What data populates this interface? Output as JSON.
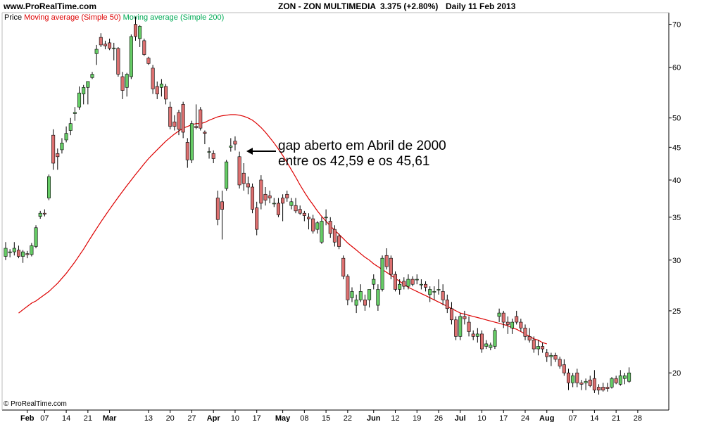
{
  "header": {
    "site": "www.ProRealTime.com",
    "symbol": "ZON - ZON MULTIMEDIA",
    "price": "3.375 (+2.80%)",
    "period": "Daily  11 Feb 2013"
  },
  "legend": {
    "price": "Price",
    "ma50": "Moving average (Simple 50)",
    "ma200": "Moving average (Simple 200)"
  },
  "footer": "© ProRealTime.com",
  "annotation": {
    "line1": "gap aberto em Abril de 2000",
    "line2": "entre os 42,59 e os 45,61"
  },
  "colors": {
    "up": "#66cc66",
    "down": "#dd7070",
    "ma50": "#dd0000",
    "ma200": "#00aa55"
  },
  "chart_data": {
    "type": "candlestick",
    "y_scale": "log",
    "ylim": [
      17.5,
      73
    ],
    "y_ticks": [
      20,
      25,
      30,
      35,
      40,
      45,
      50,
      60,
      70
    ],
    "x_labels": [
      "Feb",
      "07",
      "14",
      "21",
      "Mar",
      "13",
      "20",
      "27",
      "Apr",
      "10",
      "17",
      "May",
      "08",
      "15",
      "22",
      "Jun",
      "12",
      "19",
      "26",
      "Jul",
      "10",
      "17",
      "24",
      "Aug",
      "07",
      "14",
      "21",
      "28"
    ],
    "label_bar_index": [
      5,
      9,
      14,
      19,
      24,
      33,
      38,
      43,
      48,
      53,
      58,
      64,
      69,
      74,
      79,
      85,
      90,
      95,
      100,
      105,
      110,
      115,
      120,
      125,
      131,
      136,
      141,
      146
    ],
    "candles": [
      {
        "o": 30.4,
        "h": 32.0,
        "l": 30.0,
        "c": 31.3
      },
      {
        "o": 30.8,
        "h": 31.2,
        "l": 30.3,
        "c": 30.9
      },
      {
        "o": 30.9,
        "h": 32.0,
        "l": 30.5,
        "c": 31.3
      },
      {
        "o": 31.1,
        "h": 31.6,
        "l": 30.2,
        "c": 30.4
      },
      {
        "o": 30.4,
        "h": 31.1,
        "l": 29.7,
        "c": 30.9
      },
      {
        "o": 30.7,
        "h": 31.0,
        "l": 30.2,
        "c": 30.6
      },
      {
        "o": 30.6,
        "h": 31.9,
        "l": 30.4,
        "c": 31.6
      },
      {
        "o": 31.5,
        "h": 34.0,
        "l": 31.3,
        "c": 33.7
      },
      {
        "o": 35.1,
        "h": 35.8,
        "l": 34.8,
        "c": 35.5
      },
      {
        "o": 35.5,
        "h": 36.0,
        "l": 35.1,
        "c": 35.4
      },
      {
        "o": 37.5,
        "h": 40.8,
        "l": 37.2,
        "c": 40.5
      },
      {
        "o": 47.0,
        "h": 48.0,
        "l": 41.5,
        "c": 42.5
      },
      {
        "o": 44.0,
        "h": 44.8,
        "l": 41.5,
        "c": 43.5
      },
      {
        "o": 44.6,
        "h": 46.5,
        "l": 44.0,
        "c": 45.7
      },
      {
        "o": 46.2,
        "h": 48.5,
        "l": 45.8,
        "c": 47.3
      },
      {
        "o": 47.8,
        "h": 50.0,
        "l": 47.0,
        "c": 49.0
      },
      {
        "o": 50.8,
        "h": 52.0,
        "l": 49.5,
        "c": 51.0
      },
      {
        "o": 52.0,
        "h": 56.0,
        "l": 51.5,
        "c": 54.7
      },
      {
        "o": 54.5,
        "h": 56.3,
        "l": 52.5,
        "c": 55.8
      },
      {
        "o": 55.8,
        "h": 57.0,
        "l": 52.5,
        "c": 57.0
      },
      {
        "o": 57.8,
        "h": 59.0,
        "l": 57.5,
        "c": 58.5
      },
      {
        "o": 63.0,
        "h": 65.0,
        "l": 60.5,
        "c": 64.0
      },
      {
        "o": 66.8,
        "h": 67.8,
        "l": 64.5,
        "c": 65.0
      },
      {
        "o": 65.2,
        "h": 66.0,
        "l": 64.0,
        "c": 64.8
      },
      {
        "o": 65.5,
        "h": 66.5,
        "l": 63.8,
        "c": 64.2
      },
      {
        "o": 64.3,
        "h": 65.5,
        "l": 61.5,
        "c": 64.3
      },
      {
        "o": 64.2,
        "h": 64.5,
        "l": 58.0,
        "c": 58.5
      },
      {
        "o": 58.0,
        "h": 59.0,
        "l": 53.5,
        "c": 55.2
      },
      {
        "o": 55.8,
        "h": 58.8,
        "l": 54.0,
        "c": 58.5
      },
      {
        "o": 58.0,
        "h": 67.5,
        "l": 57.5,
        "c": 67.0
      },
      {
        "o": 70.0,
        "h": 72.0,
        "l": 66.0,
        "c": 67.0
      },
      {
        "o": 66.5,
        "h": 69.8,
        "l": 64.5,
        "c": 69.5
      },
      {
        "o": 66.0,
        "h": 66.5,
        "l": 62.5,
        "c": 62.8
      },
      {
        "o": 62.0,
        "h": 62.3,
        "l": 60.5,
        "c": 60.8
      },
      {
        "o": 59.8,
        "h": 60.5,
        "l": 54.5,
        "c": 55.5
      },
      {
        "o": 56.0,
        "h": 57.0,
        "l": 53.5,
        "c": 54.5
      },
      {
        "o": 55.8,
        "h": 57.5,
        "l": 54.0,
        "c": 56.5
      },
      {
        "o": 56.0,
        "h": 56.5,
        "l": 52.5,
        "c": 53.5
      },
      {
        "o": 52.0,
        "h": 53.0,
        "l": 48.0,
        "c": 48.5
      },
      {
        "o": 49.3,
        "h": 50.5,
        "l": 47.8,
        "c": 48.5
      },
      {
        "o": 51.0,
        "h": 51.5,
        "l": 47.0,
        "c": 48.0
      },
      {
        "o": 52.5,
        "h": 53.0,
        "l": 46.5,
        "c": 47.5
      },
      {
        "o": 45.8,
        "h": 46.5,
        "l": 41.8,
        "c": 43.0
      },
      {
        "o": 43.0,
        "h": 49.5,
        "l": 42.5,
        "c": 49.0
      },
      {
        "o": 48.5,
        "h": 52.5,
        "l": 48.0,
        "c": 48.3
      },
      {
        "o": 51.5,
        "h": 52.0,
        "l": 47.8,
        "c": 48.2
      },
      {
        "o": 47.5,
        "h": 47.8,
        "l": 45.5,
        "c": 47.3
      },
      {
        "o": 44.3,
        "h": 45.0,
        "l": 43.2,
        "c": 44.3
      },
      {
        "o": 44.0,
        "h": 44.5,
        "l": 42.5,
        "c": 43.2
      },
      {
        "o": 37.5,
        "h": 38.5,
        "l": 34.0,
        "c": 34.7
      },
      {
        "o": 37.0,
        "h": 38.5,
        "l": 32.3,
        "c": 36.0
      },
      {
        "o": 38.8,
        "h": 43.0,
        "l": 38.5,
        "c": 42.7
      },
      {
        "o": 45.0,
        "h": 46.5,
        "l": 44.3,
        "c": 45.2
      },
      {
        "o": 46.0,
        "h": 46.8,
        "l": 44.5,
        "c": 45.5
      },
      {
        "o": 43.5,
        "h": 44.3,
        "l": 38.8,
        "c": 39.3
      },
      {
        "o": 41.0,
        "h": 42.5,
        "l": 38.5,
        "c": 39.5
      },
      {
        "o": 39.5,
        "h": 40.5,
        "l": 38.0,
        "c": 39.0
      },
      {
        "o": 39.0,
        "h": 39.5,
        "l": 35.5,
        "c": 36.0
      },
      {
        "o": 36.2,
        "h": 37.0,
        "l": 32.8,
        "c": 33.5
      },
      {
        "o": 40.0,
        "h": 40.7,
        "l": 36.0,
        "c": 36.8
      },
      {
        "o": 38.0,
        "h": 39.0,
        "l": 36.5,
        "c": 37.2
      },
      {
        "o": 37.8,
        "h": 38.5,
        "l": 36.8,
        "c": 37.5
      },
      {
        "o": 36.8,
        "h": 37.5,
        "l": 36.3,
        "c": 36.8
      },
      {
        "o": 36.8,
        "h": 37.5,
        "l": 35.0,
        "c": 35.3
      },
      {
        "o": 37.5,
        "h": 38.0,
        "l": 34.5,
        "c": 36.8
      },
      {
        "o": 38.0,
        "h": 38.5,
        "l": 37.0,
        "c": 37.5
      },
      {
        "o": 36.5,
        "h": 37.5,
        "l": 36.0,
        "c": 37.0
      },
      {
        "o": 36.5,
        "h": 37.5,
        "l": 35.5,
        "c": 35.8
      },
      {
        "o": 36.0,
        "h": 36.5,
        "l": 35.3,
        "c": 35.5
      },
      {
        "o": 35.5,
        "h": 35.8,
        "l": 34.5,
        "c": 35.2
      },
      {
        "o": 35.0,
        "h": 35.5,
        "l": 33.5,
        "c": 34.8
      },
      {
        "o": 34.8,
        "h": 35.3,
        "l": 33.0,
        "c": 33.3
      },
      {
        "o": 33.5,
        "h": 34.5,
        "l": 33.0,
        "c": 34.3
      },
      {
        "o": 32.0,
        "h": 35.0,
        "l": 31.8,
        "c": 34.5
      },
      {
        "o": 35.0,
        "h": 36.0,
        "l": 34.0,
        "c": 35.0
      },
      {
        "o": 34.5,
        "h": 35.0,
        "l": 32.5,
        "c": 33.0
      },
      {
        "o": 33.5,
        "h": 34.0,
        "l": 31.5,
        "c": 32.0
      },
      {
        "o": 32.7,
        "h": 33.0,
        "l": 31.2,
        "c": 31.5
      },
      {
        "o": 30.2,
        "h": 30.5,
        "l": 28.0,
        "c": 28.3
      },
      {
        "o": 28.3,
        "h": 28.5,
        "l": 25.5,
        "c": 26.0
      },
      {
        "o": 26.2,
        "h": 27.2,
        "l": 25.8,
        "c": 26.8
      },
      {
        "o": 25.5,
        "h": 26.5,
        "l": 24.8,
        "c": 26.0
      },
      {
        "o": 26.0,
        "h": 27.5,
        "l": 25.8,
        "c": 26.8
      },
      {
        "o": 26.0,
        "h": 26.5,
        "l": 25.0,
        "c": 25.5
      },
      {
        "o": 26.0,
        "h": 27.0,
        "l": 25.3,
        "c": 27.0
      },
      {
        "o": 27.5,
        "h": 28.5,
        "l": 27.0,
        "c": 28.0
      },
      {
        "o": 25.5,
        "h": 27.5,
        "l": 25.0,
        "c": 27.0
      },
      {
        "o": 27.0,
        "h": 30.5,
        "l": 26.8,
        "c": 30.2
      },
      {
        "o": 30.5,
        "h": 31.3,
        "l": 29.0,
        "c": 29.3
      },
      {
        "o": 30.2,
        "h": 30.5,
        "l": 28.0,
        "c": 28.5
      },
      {
        "o": 28.5,
        "h": 28.8,
        "l": 26.8,
        "c": 27.0
      },
      {
        "o": 27.0,
        "h": 28.0,
        "l": 26.5,
        "c": 27.5
      },
      {
        "o": 27.8,
        "h": 28.2,
        "l": 27.0,
        "c": 27.3
      },
      {
        "o": 27.3,
        "h": 28.5,
        "l": 27.0,
        "c": 28.0
      },
      {
        "o": 28.0,
        "h": 28.3,
        "l": 27.3,
        "c": 27.5
      },
      {
        "o": 28.0,
        "h": 28.5,
        "l": 27.5,
        "c": 28.0
      },
      {
        "o": 27.5,
        "h": 28.0,
        "l": 27.0,
        "c": 27.5
      },
      {
        "o": 27.5,
        "h": 27.8,
        "l": 26.8,
        "c": 27.2
      },
      {
        "o": 26.5,
        "h": 27.3,
        "l": 25.8,
        "c": 27.0
      },
      {
        "o": 26.8,
        "h": 27.3,
        "l": 26.0,
        "c": 26.8
      },
      {
        "o": 27.0,
        "h": 28.0,
        "l": 26.5,
        "c": 27.0
      },
      {
        "o": 26.8,
        "h": 27.5,
        "l": 25.5,
        "c": 26.0
      },
      {
        "o": 26.0,
        "h": 26.5,
        "l": 24.8,
        "c": 25.2
      },
      {
        "o": 25.2,
        "h": 25.8,
        "l": 23.8,
        "c": 24.2
      },
      {
        "o": 24.2,
        "h": 24.5,
        "l": 22.5,
        "c": 22.8
      },
      {
        "o": 22.8,
        "h": 24.8,
        "l": 22.5,
        "c": 24.5
      },
      {
        "o": 24.5,
        "h": 25.0,
        "l": 23.8,
        "c": 24.3
      },
      {
        "o": 24.0,
        "h": 24.5,
        "l": 22.8,
        "c": 23.2
      },
      {
        "o": 23.0,
        "h": 23.3,
        "l": 22.5,
        "c": 22.8
      },
      {
        "o": 22.8,
        "h": 23.5,
        "l": 22.3,
        "c": 23.0
      },
      {
        "o": 23.0,
        "h": 23.3,
        "l": 21.5,
        "c": 21.8
      },
      {
        "o": 22.0,
        "h": 22.5,
        "l": 21.8,
        "c": 22.2
      },
      {
        "o": 21.9,
        "h": 22.3,
        "l": 21.7,
        "c": 22.1
      },
      {
        "o": 22.0,
        "h": 23.5,
        "l": 21.8,
        "c": 23.3
      },
      {
        "o": 24.5,
        "h": 25.2,
        "l": 24.0,
        "c": 24.8
      },
      {
        "o": 24.8,
        "h": 25.0,
        "l": 23.5,
        "c": 24.0
      },
      {
        "o": 24.0,
        "h": 24.5,
        "l": 23.0,
        "c": 23.8
      },
      {
        "o": 23.5,
        "h": 24.3,
        "l": 23.0,
        "c": 24.0
      },
      {
        "o": 24.5,
        "h": 25.0,
        "l": 23.8,
        "c": 24.0
      },
      {
        "o": 24.0,
        "h": 24.3,
        "l": 23.2,
        "c": 23.5
      },
      {
        "o": 23.5,
        "h": 23.8,
        "l": 22.5,
        "c": 22.8
      },
      {
        "o": 22.8,
        "h": 23.5,
        "l": 22.3,
        "c": 22.5
      },
      {
        "o": 22.5,
        "h": 22.8,
        "l": 21.5,
        "c": 21.8
      },
      {
        "o": 21.8,
        "h": 22.5,
        "l": 21.3,
        "c": 22.0
      },
      {
        "o": 22.0,
        "h": 22.3,
        "l": 21.5,
        "c": 21.8
      },
      {
        "o": 21.5,
        "h": 21.8,
        "l": 20.8,
        "c": 21.2
      },
      {
        "o": 21.2,
        "h": 21.5,
        "l": 20.5,
        "c": 21.3
      },
      {
        "o": 21.3,
        "h": 21.5,
        "l": 20.8,
        "c": 21.0
      },
      {
        "o": 21.0,
        "h": 21.2,
        "l": 20.3,
        "c": 20.5
      },
      {
        "o": 20.6,
        "h": 21.0,
        "l": 19.8,
        "c": 20.0
      },
      {
        "o": 20.0,
        "h": 20.3,
        "l": 18.8,
        "c": 19.3
      },
      {
        "o": 19.3,
        "h": 20.0,
        "l": 19.0,
        "c": 19.8
      },
      {
        "o": 20.0,
        "h": 20.3,
        "l": 19.0,
        "c": 19.3
      },
      {
        "o": 19.3,
        "h": 19.5,
        "l": 18.8,
        "c": 19.2
      },
      {
        "o": 19.3,
        "h": 19.6,
        "l": 18.8,
        "c": 19.4
      },
      {
        "o": 19.5,
        "h": 19.8,
        "l": 19.0,
        "c": 19.1
      },
      {
        "o": 19.6,
        "h": 20.2,
        "l": 18.6,
        "c": 18.8
      },
      {
        "o": 19.0,
        "h": 19.2,
        "l": 18.5,
        "c": 18.8
      },
      {
        "o": 19.0,
        "h": 19.3,
        "l": 18.7,
        "c": 18.8
      },
      {
        "o": 19.0,
        "h": 19.3,
        "l": 18.7,
        "c": 18.9
      },
      {
        "o": 19.0,
        "h": 19.7,
        "l": 18.9,
        "c": 19.6
      },
      {
        "o": 19.6,
        "h": 19.8,
        "l": 19.2,
        "c": 19.3
      },
      {
        "o": 19.2,
        "h": 20.2,
        "l": 19.1,
        "c": 19.8
      },
      {
        "o": 19.6,
        "h": 20.0,
        "l": 19.2,
        "c": 19.8
      },
      {
        "o": 19.4,
        "h": 20.4,
        "l": 19.3,
        "c": 20.0
      }
    ],
    "ma50": {
      "start_index": 3,
      "values": [
        24.8,
        25.1,
        25.4,
        25.7,
        25.9,
        26.2,
        26.5,
        26.8,
        27.2,
        27.6,
        28.1,
        28.6,
        29.2,
        29.8,
        30.5,
        31.2,
        32.0,
        32.8,
        33.6,
        34.4,
        35.2,
        36.0,
        36.8,
        37.6,
        38.4,
        39.2,
        40.0,
        40.8,
        41.6,
        42.4,
        43.2,
        43.9,
        44.6,
        45.3,
        46.0,
        46.6,
        47.2,
        47.7,
        48.2,
        48.5,
        48.8,
        49.0,
        49.0,
        49.2,
        49.6,
        49.9,
        50.2,
        50.4,
        50.5,
        50.6,
        50.6,
        50.5,
        50.3,
        50.0,
        49.6,
        49.0,
        48.3,
        47.5,
        46.6,
        45.7,
        44.7,
        43.7,
        42.6,
        41.5,
        40.4,
        39.3,
        38.3,
        37.4,
        36.6,
        35.8,
        35.1,
        34.5,
        33.9,
        33.4,
        32.9,
        32.4,
        31.9,
        31.5,
        31.1,
        30.7,
        30.3,
        30.0,
        29.6,
        29.3,
        29.0,
        28.7,
        28.4,
        28.1,
        27.8,
        27.5,
        27.2,
        27.0,
        26.8,
        26.6,
        26.4,
        26.2,
        26.0,
        25.8,
        25.6,
        25.4,
        25.2,
        25.0,
        24.8,
        24.7,
        24.6,
        24.5,
        24.4,
        24.3,
        24.2,
        24.1,
        24.0,
        23.9,
        23.8,
        23.7,
        23.5,
        23.4,
        23.2,
        23.0,
        22.8,
        22.6,
        22.5,
        22.3,
        22.2
      ],
      "color": "#dd0000"
    }
  }
}
